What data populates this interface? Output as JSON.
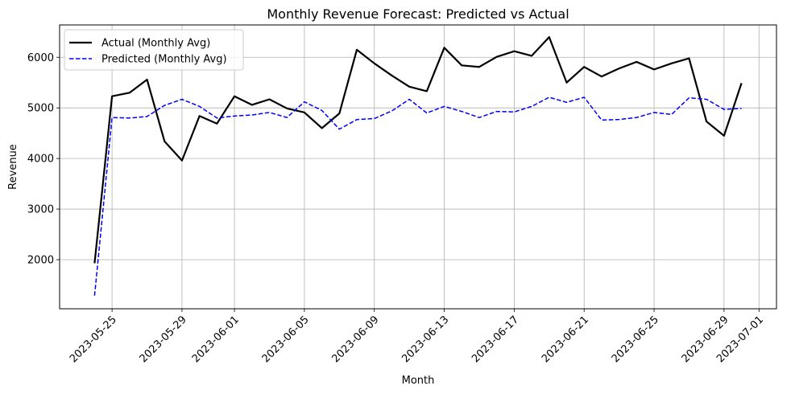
{
  "chart_data": {
    "type": "line",
    "title": "Monthly Revenue Forecast: Predicted vs Actual",
    "xlabel": "Month",
    "ylabel": "Revenue",
    "x_is_date": true,
    "xlim": [
      "2023-05-22",
      "2023-07-02"
    ],
    "ylim": [
      1030,
      6640
    ],
    "grid": true,
    "legend_position": "top-left",
    "x_ticks": [
      "2023-05-25",
      "2023-05-29",
      "2023-06-01",
      "2023-06-05",
      "2023-06-09",
      "2023-06-13",
      "2023-06-17",
      "2023-06-21",
      "2023-06-25",
      "2023-06-29",
      "2023-07-01"
    ],
    "y_ticks": [
      2000,
      3000,
      4000,
      5000,
      6000
    ],
    "x": [
      "2023-05-24",
      "2023-05-25",
      "2023-05-26",
      "2023-05-27",
      "2023-05-28",
      "2023-05-29",
      "2023-05-30",
      "2023-05-31",
      "2023-06-01",
      "2023-06-02",
      "2023-06-03",
      "2023-06-04",
      "2023-06-05",
      "2023-06-06",
      "2023-06-07",
      "2023-06-08",
      "2023-06-09",
      "2023-06-10",
      "2023-06-11",
      "2023-06-12",
      "2023-06-13",
      "2023-06-14",
      "2023-06-15",
      "2023-06-16",
      "2023-06-17",
      "2023-06-18",
      "2023-06-19",
      "2023-06-20",
      "2023-06-21",
      "2023-06-22",
      "2023-06-23",
      "2023-06-24",
      "2023-06-25",
      "2023-06-26",
      "2023-06-27",
      "2023-06-28",
      "2023-06-29",
      "2023-06-30"
    ],
    "series": [
      {
        "name": "Actual (Monthly Avg)",
        "color": "#000000",
        "style": "solid",
        "values": [
          1930,
          5230,
          5300,
          5560,
          4340,
          3960,
          4840,
          4690,
          5230,
          5060,
          5170,
          4990,
          4910,
          4600,
          4890,
          6150,
          5880,
          5640,
          5420,
          5330,
          6190,
          5840,
          5810,
          6010,
          6120,
          6030,
          6400,
          5500,
          5810,
          5620,
          5780,
          5910,
          5760,
          5880,
          5980,
          4730,
          4450,
          5490
        ]
      },
      {
        "name": "Predicted (Monthly Avg)",
        "color": "#0000ff",
        "style": "dashed",
        "values": [
          1290,
          4810,
          4800,
          4830,
          5050,
          5170,
          5030,
          4800,
          4840,
          4860,
          4910,
          4810,
          5120,
          4950,
          4580,
          4770,
          4790,
          4940,
          5170,
          4900,
          5030,
          4930,
          4810,
          4930,
          4920,
          5030,
          5210,
          5110,
          5210,
          4760,
          4770,
          4810,
          4910,
          4870,
          5200,
          5170,
          4970,
          4990
        ]
      }
    ]
  }
}
